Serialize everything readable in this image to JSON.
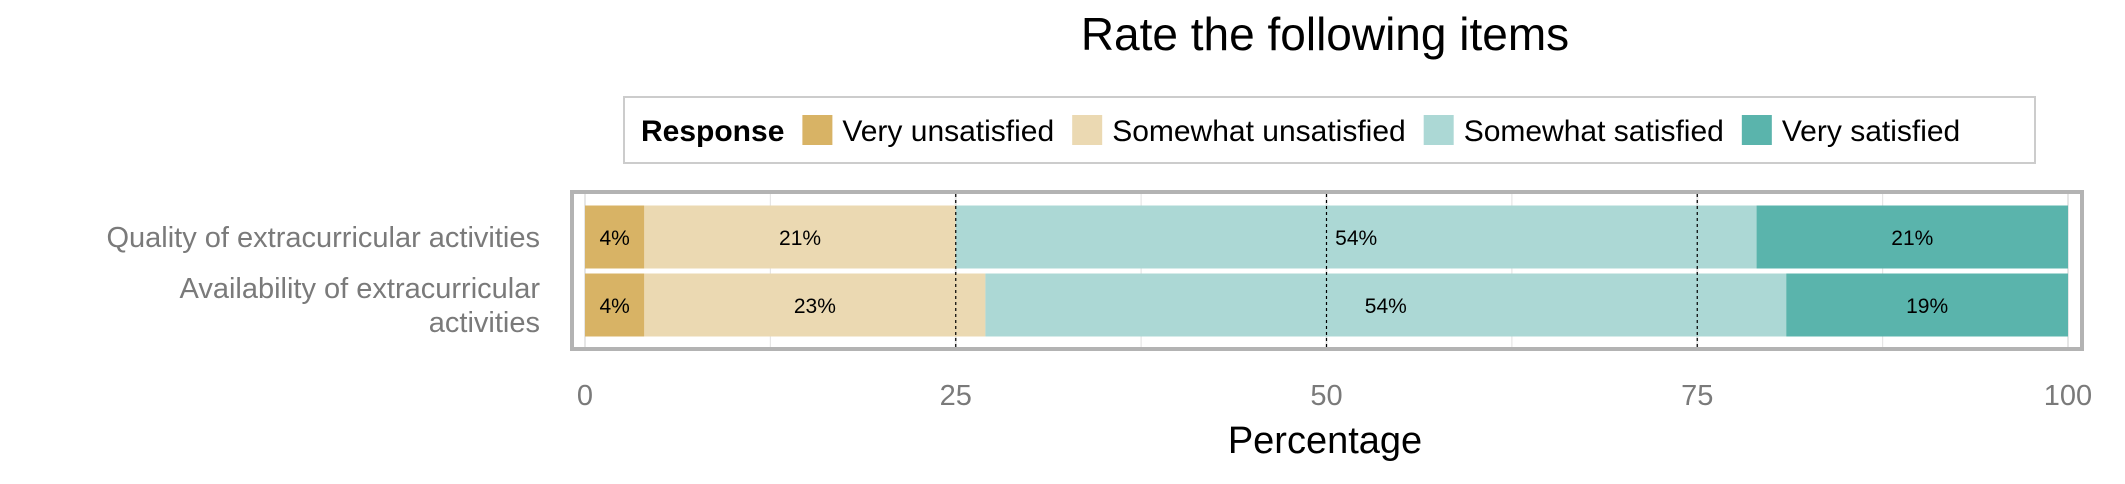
{
  "chart_data": {
    "type": "bar",
    "orientation": "horizontal",
    "stacked": true,
    "title": "Rate the following items",
    "xlabel": "Percentage",
    "ylabel": "",
    "xlim": [
      0,
      100
    ],
    "xticks": [
      0,
      25,
      50,
      75,
      100
    ],
    "grid": true,
    "legend_title": "Response",
    "legend_position": "top",
    "categories": [
      [
        "Quality of extracurricular activities"
      ],
      [
        "Availability of extracurricular",
        "activities"
      ]
    ],
    "series": [
      {
        "name": "Very unsatisfied",
        "color": "#d8b365",
        "values": [
          4,
          4
        ],
        "labels": [
          "4%",
          "4%"
        ]
      },
      {
        "name": "Somewhat unsatisfied",
        "color": "#ebd9b2",
        "values": [
          21,
          23
        ],
        "labels": [
          "21%",
          "23%"
        ]
      },
      {
        "name": "Somewhat satisfied",
        "color": "#acd8d5",
        "values": [
          54,
          54
        ],
        "labels": [
          "54%",
          "54%"
        ]
      },
      {
        "name": "Very satisfied",
        "color": "#5ab4ac",
        "values": [
          21,
          19
        ],
        "labels": [
          "21%",
          "19%"
        ]
      }
    ]
  }
}
